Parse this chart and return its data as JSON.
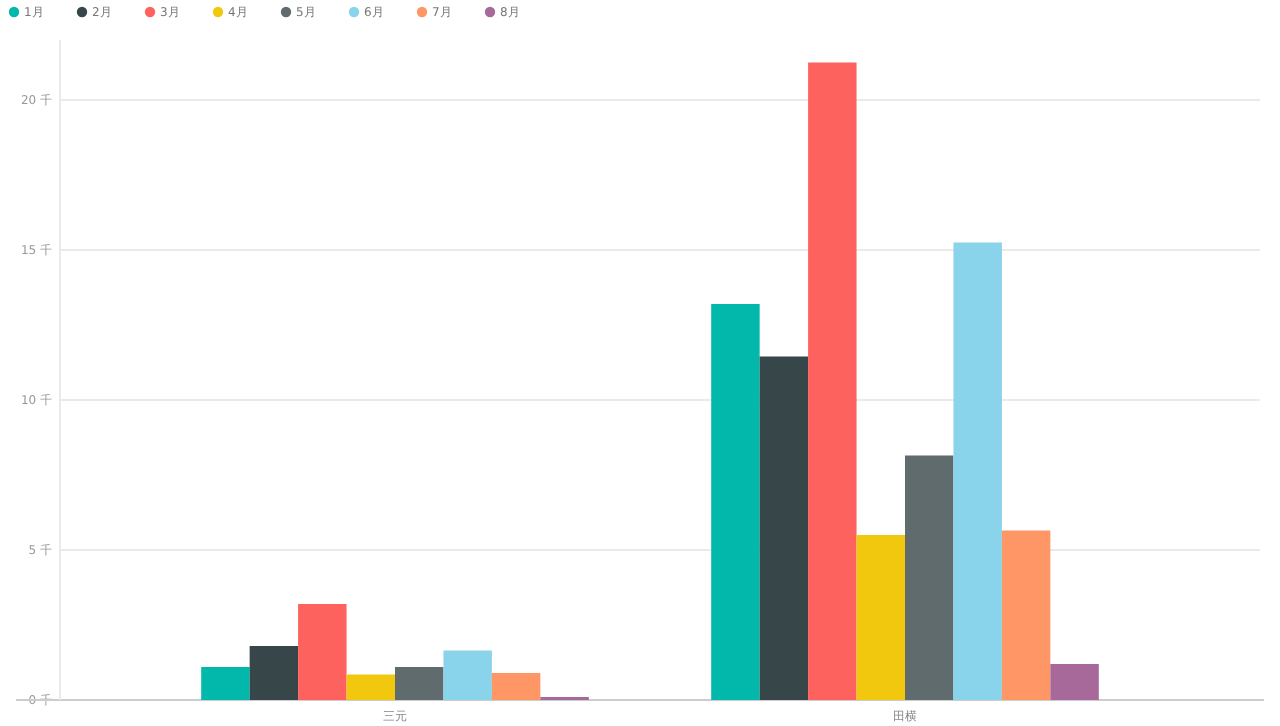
{
  "chart_data": {
    "type": "bar",
    "categories": [
      "三元",
      "田横"
    ],
    "series": [
      {
        "name": "1月",
        "color": "#01b8aa",
        "values": [
          1.1,
          13.2
        ]
      },
      {
        "name": "2月",
        "color": "#374649",
        "values": [
          1.8,
          11.45
        ]
      },
      {
        "name": "3月",
        "color": "#fd625e",
        "values": [
          3.2,
          21.25
        ]
      },
      {
        "name": "4月",
        "color": "#f2c80f",
        "values": [
          0.85,
          5.5
        ]
      },
      {
        "name": "5月",
        "color": "#5f6b6d",
        "values": [
          1.1,
          8.15
        ]
      },
      {
        "name": "6月",
        "color": "#8ad4eb",
        "values": [
          1.65,
          15.25
        ]
      },
      {
        "name": "7月",
        "color": "#fe9666",
        "values": [
          0.9,
          5.65
        ]
      },
      {
        "name": "8月",
        "color": "#a66999",
        "values": [
          0.1,
          1.2
        ]
      }
    ],
    "ylim": [
      0,
      22
    ],
    "yticks": [
      {
        "value": 0,
        "label": "0 千"
      },
      {
        "value": 5,
        "label": "5 千"
      },
      {
        "value": 10,
        "label": "10 千"
      },
      {
        "value": 15,
        "label": "15 千"
      },
      {
        "value": 20,
        "label": "20 千"
      }
    ],
    "grid": "y",
    "legend": "top left"
  }
}
